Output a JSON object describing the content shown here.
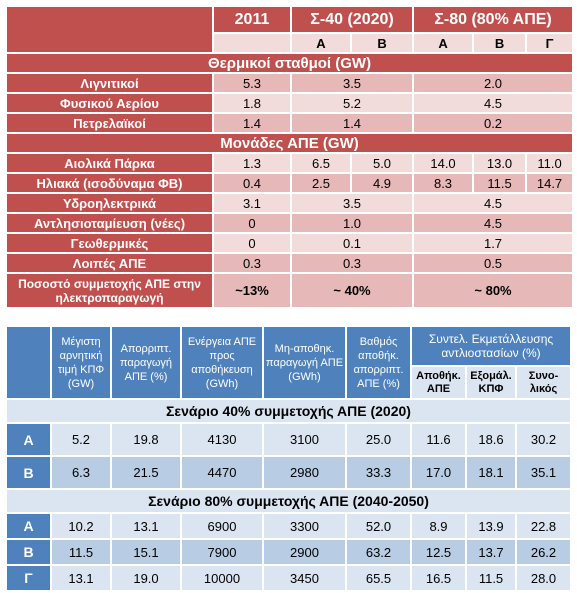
{
  "table1": {
    "header": [
      "2011",
      "Σ-40 (2020)",
      "Σ-80 (80% ΑΠΕ)"
    ],
    "subheader": [
      "Α",
      "Β",
      "Α",
      "Β",
      "Γ"
    ],
    "sections": [
      {
        "title": "Θερμικοί σταθμοί  (GW)",
        "rows": [
          {
            "label": "Λιγνιτικοί",
            "cells": [
              "5.3",
              "3.5",
              "2.0"
            ]
          },
          {
            "label": "Φυσικού Αερίου",
            "cells": [
              "1.8",
              "5.2",
              "4.5"
            ]
          },
          {
            "label": "Πετρελαϊκοί",
            "cells": [
              "1.4",
              "1.4",
              "0.2"
            ]
          }
        ]
      },
      {
        "title": "Μονάδες ΑΠΕ  (GW)",
        "rows": [
          {
            "label": "Αιολικά Πάρκα",
            "cells": [
              "1.3",
              "6.5",
              "5.0",
              "14.0",
              "13.0",
              "11.0"
            ]
          },
          {
            "label": "Ηλιακά (ισοδύναμα ΦΒ)",
            "cells": [
              "0.4",
              "2.5",
              "4.9",
              "8.3",
              "11.5",
              "14.7"
            ]
          },
          {
            "label": "Υδροηλεκτρικά",
            "cells": [
              "3.1",
              "3.5",
              "4.5"
            ]
          },
          {
            "label": "Αντλησιοταμίευση (νέες)",
            "cells": [
              "0",
              "1.0",
              "4.5"
            ]
          },
          {
            "label": "Γεωθερμικές",
            "cells": [
              "0",
              "0.1",
              "1.7"
            ]
          },
          {
            "label": "Λοιπές ΑΠΕ",
            "cells": [
              "0.3",
              "0.3",
              "0.5"
            ]
          }
        ]
      }
    ],
    "footer": {
      "label": "Ποσοστό συμμετοχής ΑΠΕ στην ηλεκτροπαραγωγή",
      "cells": [
        "~13%",
        "~ 40%",
        "~ 80%"
      ]
    }
  },
  "table2": {
    "columns": [
      "Μέγιστη αρνητική τιμή ΚΠΦ (GW)",
      "Απορριπτ. παραγωγή ΑΠΕ (%)",
      "Ενέργεια ΑΠΕ προς αποθήκευση (GWh)",
      "Μη-αποθηκ. παραγωγή ΑΠΕ (GWh)",
      "Βαθμός αποθήκ. απορριπτ. ΑΠΕ  (%)"
    ],
    "group": {
      "title": "Συντελ. Εκμετάλλευσης αντλιοστασίων (%)",
      "columns": [
        "Αποθήκ. ΑΠΕ",
        "Εξομάλ. ΚΠΦ",
        "Συνο-λικός"
      ]
    },
    "sections": [
      {
        "title": "Σενάριο 40% συμμετοχής ΑΠΕ (2020)",
        "rows": [
          {
            "label": "Α",
            "cells": [
              "5.2",
              "19.8",
              "4130",
              "3100",
              "25.0",
              "11.6",
              "18.6",
              "30.2"
            ]
          },
          {
            "label": "Β",
            "cells": [
              "6.3",
              "21.5",
              "4470",
              "2980",
              "33.3",
              "17.0",
              "18.1",
              "35.1"
            ]
          }
        ]
      },
      {
        "title": "Σενάριο 80% συμμετοχής ΑΠΕ (2040-2050)",
        "rows": [
          {
            "label": "Α",
            "cells": [
              "10.2",
              "13.1",
              "6900",
              "3300",
              "52.0",
              "8.9",
              "13.9",
              "22.8"
            ]
          },
          {
            "label": "Β",
            "cells": [
              "11.5",
              "15.1",
              "7900",
              "2900",
              "63.2",
              "12.5",
              "13.7",
              "26.2"
            ]
          },
          {
            "label": "Γ",
            "cells": [
              "13.1",
              "19.0",
              "10000",
              "3450",
              "65.5",
              "16.5",
              "11.5",
              "28.0"
            ]
          }
        ]
      }
    ]
  }
}
